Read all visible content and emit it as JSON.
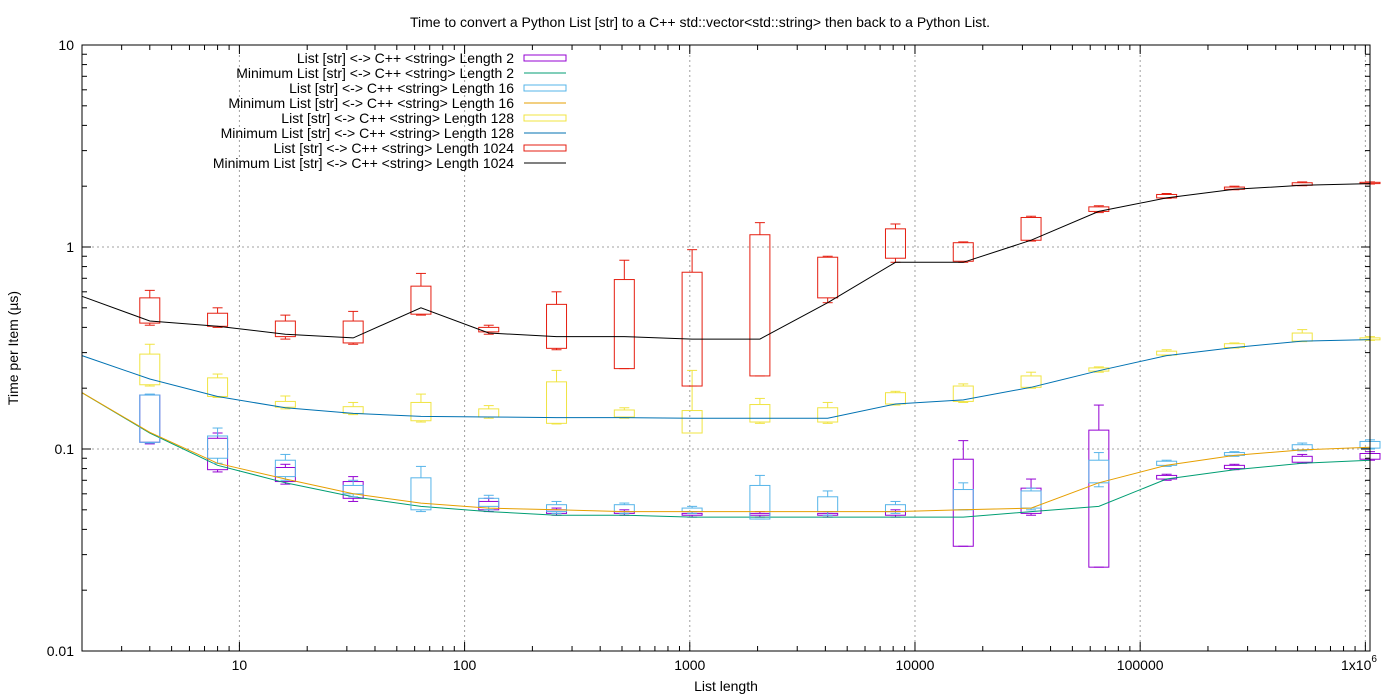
{
  "chart_data": {
    "type": "box-and-line",
    "title": "Time to convert a Python List [str] to a C++ std::vector<std::string> then back to a Python List.",
    "xlabel": "List length",
    "ylabel": "Time per Item (µs)",
    "xscale": "log",
    "yscale": "log",
    "xlim": [
      2,
      1048576
    ],
    "ylim": [
      0.01,
      10
    ],
    "grid": true,
    "legend_position": "top-left",
    "x_ticks": [
      {
        "value": 10,
        "label": "10"
      },
      {
        "value": 100,
        "label": "100"
      },
      {
        "value": 1000,
        "label": "1000"
      },
      {
        "value": 10000,
        "label": "10000"
      },
      {
        "value": 100000,
        "label": "100000"
      },
      {
        "value": 1000000,
        "label": "1x10",
        "sup": "6"
      }
    ],
    "y_ticks": [
      {
        "value": 0.01,
        "label": "0.01"
      },
      {
        "value": 0.1,
        "label": "0.1"
      },
      {
        "value": 1,
        "label": "1"
      },
      {
        "value": 10,
        "label": "10"
      }
    ],
    "x": [
      2,
      4,
      8,
      16,
      32,
      64,
      128,
      256,
      512,
      1024,
      2048,
      4096,
      8192,
      16384,
      32768,
      65536,
      131072,
      262144,
      524288,
      1048576
    ],
    "series": [
      {
        "name": "List [str] <-> C++ <string> Length 2",
        "kind": "box",
        "color": "#9400d3",
        "boxes": [
          {
            "x": 4,
            "low": 0.106,
            "q1": 0.108,
            "q3": 0.185,
            "high": 0.186
          },
          {
            "x": 8,
            "low": 0.077,
            "q1": 0.079,
            "q3": 0.113,
            "high": 0.12
          },
          {
            "x": 16,
            "low": 0.067,
            "q1": 0.069,
            "q3": 0.081,
            "high": 0.084
          },
          {
            "x": 32,
            "low": 0.055,
            "q1": 0.057,
            "q3": 0.069,
            "high": 0.073
          },
          {
            "x": 128,
            "low": 0.049,
            "q1": 0.05,
            "q3": 0.055,
            "high": 0.057
          },
          {
            "x": 256,
            "low": 0.047,
            "q1": 0.048,
            "q3": 0.05,
            "high": 0.051
          },
          {
            "x": 512,
            "low": 0.047,
            "q1": 0.048,
            "q3": 0.049,
            "high": 0.05
          },
          {
            "x": 1024,
            "low": 0.046,
            "q1": 0.047,
            "q3": 0.048,
            "high": 0.049
          },
          {
            "x": 2048,
            "low": 0.046,
            "q1": 0.047,
            "q3": 0.048,
            "high": 0.049
          },
          {
            "x": 4096,
            "low": 0.046,
            "q1": 0.047,
            "q3": 0.048,
            "high": 0.049
          },
          {
            "x": 8192,
            "low": 0.046,
            "q1": 0.047,
            "q3": 0.049,
            "high": 0.05
          },
          {
            "x": 16384,
            "low": 0.033,
            "q1": 0.033,
            "q3": 0.089,
            "high": 0.11
          },
          {
            "x": 32768,
            "low": 0.047,
            "q1": 0.048,
            "q3": 0.064,
            "high": 0.071
          },
          {
            "x": 65536,
            "low": 0.026,
            "q1": 0.026,
            "q3": 0.124,
            "high": 0.165
          },
          {
            "x": 131072,
            "low": 0.07,
            "q1": 0.071,
            "q3": 0.074,
            "high": 0.075
          },
          {
            "x": 262144,
            "low": 0.079,
            "q1": 0.08,
            "q3": 0.083,
            "high": 0.084
          },
          {
            "x": 524288,
            "low": 0.085,
            "q1": 0.086,
            "q3": 0.092,
            "high": 0.094
          },
          {
            "x": 1048576,
            "low": 0.088,
            "q1": 0.089,
            "q3": 0.095,
            "high": 0.097
          }
        ]
      },
      {
        "name": "Minimum List [str] <-> C++ <string> Length 2",
        "kind": "line",
        "color": "#009e73",
        "y": [
          0.19,
          0.12,
          0.083,
          0.068,
          0.058,
          0.052,
          0.049,
          0.047,
          0.047,
          0.046,
          0.046,
          0.046,
          0.046,
          0.046,
          0.049,
          0.052,
          0.071,
          0.079,
          0.085,
          0.088
        ]
      },
      {
        "name": "List [str] <-> C++ <string> Length 16",
        "kind": "box",
        "color": "#56b4e9",
        "boxes": [
          {
            "x": 4,
            "low": 0.107,
            "q1": 0.108,
            "q3": 0.185,
            "high": 0.187
          },
          {
            "x": 8,
            "low": 0.085,
            "q1": 0.09,
            "q3": 0.116,
            "high": 0.127
          },
          {
            "x": 16,
            "low": 0.07,
            "q1": 0.073,
            "q3": 0.088,
            "high": 0.094
          },
          {
            "x": 32,
            "low": 0.058,
            "q1": 0.06,
            "q3": 0.066,
            "high": 0.07
          },
          {
            "x": 64,
            "low": 0.049,
            "q1": 0.05,
            "q3": 0.072,
            "high": 0.082
          },
          {
            "x": 128,
            "low": 0.05,
            "q1": 0.052,
            "q3": 0.057,
            "high": 0.059
          },
          {
            "x": 256,
            "low": 0.048,
            "q1": 0.049,
            "q3": 0.053,
            "high": 0.055
          },
          {
            "x": 512,
            "low": 0.048,
            "q1": 0.049,
            "q3": 0.053,
            "high": 0.054
          },
          {
            "x": 1024,
            "low": 0.048,
            "q1": 0.049,
            "q3": 0.051,
            "high": 0.052
          },
          {
            "x": 2048,
            "low": 0.045,
            "q1": 0.045,
            "q3": 0.066,
            "high": 0.074
          },
          {
            "x": 4096,
            "low": 0.047,
            "q1": 0.049,
            "q3": 0.058,
            "high": 0.062
          },
          {
            "x": 8192,
            "low": 0.048,
            "q1": 0.049,
            "q3": 0.053,
            "high": 0.055
          },
          {
            "x": 16384,
            "low": 0.05,
            "q1": 0.05,
            "q3": 0.063,
            "high": 0.068
          },
          {
            "x": 32768,
            "low": 0.05,
            "q1": 0.051,
            "q3": 0.062,
            "high": 0.064
          },
          {
            "x": 65536,
            "low": 0.065,
            "q1": 0.068,
            "q3": 0.088,
            "high": 0.096
          },
          {
            "x": 131072,
            "low": 0.082,
            "q1": 0.083,
            "q3": 0.087,
            "high": 0.088
          },
          {
            "x": 262144,
            "low": 0.092,
            "q1": 0.093,
            "q3": 0.096,
            "high": 0.097
          },
          {
            "x": 524288,
            "low": 0.098,
            "q1": 0.099,
            "q3": 0.105,
            "high": 0.107
          },
          {
            "x": 1048576,
            "low": 0.1,
            "q1": 0.101,
            "q3": 0.109,
            "high": 0.111
          }
        ]
      },
      {
        "name": "Minimum List [str] <-> C++ <string> Length 16",
        "kind": "line",
        "color": "#e69f00",
        "y": [
          0.19,
          0.121,
          0.085,
          0.071,
          0.06,
          0.054,
          0.051,
          0.05,
          0.049,
          0.049,
          0.049,
          0.049,
          0.049,
          0.05,
          0.051,
          0.068,
          0.083,
          0.093,
          0.099,
          0.102
        ]
      },
      {
        "name": "List [str] <-> C++ <string> Length 128",
        "kind": "box",
        "color": "#f0e442",
        "boxes": [
          {
            "x": 4,
            "low": 0.205,
            "q1": 0.208,
            "q3": 0.295,
            "high": 0.33
          },
          {
            "x": 8,
            "low": 0.18,
            "q1": 0.182,
            "q3": 0.225,
            "high": 0.235
          },
          {
            "x": 16,
            "low": 0.158,
            "q1": 0.161,
            "q3": 0.172,
            "high": 0.183
          },
          {
            "x": 32,
            "low": 0.148,
            "q1": 0.15,
            "q3": 0.162,
            "high": 0.17
          },
          {
            "x": 64,
            "low": 0.136,
            "q1": 0.138,
            "q3": 0.17,
            "high": 0.187
          },
          {
            "x": 128,
            "low": 0.142,
            "q1": 0.144,
            "q3": 0.158,
            "high": 0.164
          },
          {
            "x": 256,
            "low": 0.133,
            "q1": 0.134,
            "q3": 0.215,
            "high": 0.245
          },
          {
            "x": 512,
            "low": 0.142,
            "q1": 0.144,
            "q3": 0.156,
            "high": 0.16
          },
          {
            "x": 1024,
            "low": 0.12,
            "q1": 0.12,
            "q3": 0.155,
            "high": 0.245
          },
          {
            "x": 2048,
            "low": 0.134,
            "q1": 0.136,
            "q3": 0.166,
            "high": 0.178
          },
          {
            "x": 4096,
            "low": 0.134,
            "q1": 0.136,
            "q3": 0.16,
            "high": 0.17
          },
          {
            "x": 8192,
            "low": 0.165,
            "q1": 0.167,
            "q3": 0.19,
            "high": 0.193
          },
          {
            "x": 16384,
            "low": 0.17,
            "q1": 0.172,
            "q3": 0.205,
            "high": 0.21
          },
          {
            "x": 32768,
            "low": 0.2,
            "q1": 0.202,
            "q3": 0.23,
            "high": 0.24
          },
          {
            "x": 65536,
            "low": 0.24,
            "q1": 0.243,
            "q3": 0.252,
            "high": 0.255
          },
          {
            "x": 131072,
            "low": 0.29,
            "q1": 0.292,
            "q3": 0.305,
            "high": 0.31
          },
          {
            "x": 262144,
            "low": 0.316,
            "q1": 0.318,
            "q3": 0.332,
            "high": 0.335
          },
          {
            "x": 524288,
            "low": 0.34,
            "q1": 0.342,
            "q3": 0.375,
            "high": 0.39
          },
          {
            "x": 1048576,
            "low": 0.345,
            "q1": 0.347,
            "q3": 0.355,
            "high": 0.36
          }
        ]
      },
      {
        "name": "Minimum List [str] <-> C++ <string> Length 128",
        "kind": "line",
        "color": "#0072b2",
        "y": [
          0.29,
          0.222,
          0.182,
          0.16,
          0.15,
          0.145,
          0.144,
          0.143,
          0.143,
          0.142,
          0.142,
          0.142,
          0.167,
          0.175,
          0.202,
          0.244,
          0.29,
          0.318,
          0.342,
          0.348
        ]
      },
      {
        "name": "List [str] <-> C++ <string> Length 1024",
        "kind": "box",
        "color": "#e51e10",
        "boxes": [
          {
            "x": 4,
            "low": 0.41,
            "q1": 0.42,
            "q3": 0.56,
            "high": 0.61
          },
          {
            "x": 8,
            "low": 0.4,
            "q1": 0.405,
            "q3": 0.47,
            "high": 0.5
          },
          {
            "x": 16,
            "low": 0.35,
            "q1": 0.36,
            "q3": 0.43,
            "high": 0.46
          },
          {
            "x": 32,
            "low": 0.33,
            "q1": 0.335,
            "q3": 0.43,
            "high": 0.48
          },
          {
            "x": 64,
            "low": 0.46,
            "q1": 0.465,
            "q3": 0.64,
            "high": 0.74
          },
          {
            "x": 128,
            "low": 0.37,
            "q1": 0.38,
            "q3": 0.4,
            "high": 0.41
          },
          {
            "x": 256,
            "low": 0.31,
            "q1": 0.315,
            "q3": 0.52,
            "high": 0.6
          },
          {
            "x": 512,
            "low": 0.25,
            "q1": 0.25,
            "q3": 0.69,
            "high": 0.86
          },
          {
            "x": 1024,
            "low": 0.205,
            "q1": 0.205,
            "q3": 0.75,
            "high": 0.97
          },
          {
            "x": 2048,
            "low": 0.23,
            "q1": 0.23,
            "q3": 1.15,
            "high": 1.32
          },
          {
            "x": 4096,
            "low": 0.53,
            "q1": 0.56,
            "q3": 0.89,
            "high": 0.9
          },
          {
            "x": 8192,
            "low": 0.84,
            "q1": 0.88,
            "q3": 1.23,
            "high": 1.3
          },
          {
            "x": 16384,
            "low": 0.84,
            "q1": 0.85,
            "q3": 1.05,
            "high": 1.06
          },
          {
            "x": 32768,
            "low": 1.07,
            "q1": 1.08,
            "q3": 1.4,
            "high": 1.42
          },
          {
            "x": 65536,
            "low": 1.48,
            "q1": 1.5,
            "q3": 1.58,
            "high": 1.6
          },
          {
            "x": 131072,
            "low": 1.74,
            "q1": 1.75,
            "q3": 1.82,
            "high": 1.84
          },
          {
            "x": 262144,
            "low": 1.92,
            "q1": 1.93,
            "q3": 1.98,
            "high": 2.0
          },
          {
            "x": 524288,
            "low": 2.01,
            "q1": 2.02,
            "q3": 2.08,
            "high": 2.1
          },
          {
            "x": 1048576,
            "low": 2.05,
            "q1": 2.06,
            "q3": 2.09,
            "high": 2.1
          }
        ]
      },
      {
        "name": "Minimum List [str] <-> C++ <string> Length 1024",
        "kind": "line",
        "color": "#000000",
        "y": [
          0.57,
          0.43,
          0.405,
          0.37,
          0.355,
          0.5,
          0.375,
          0.36,
          0.36,
          0.35,
          0.35,
          0.53,
          0.84,
          0.84,
          1.08,
          1.5,
          1.75,
          1.93,
          2.02,
          2.06
        ]
      }
    ]
  }
}
